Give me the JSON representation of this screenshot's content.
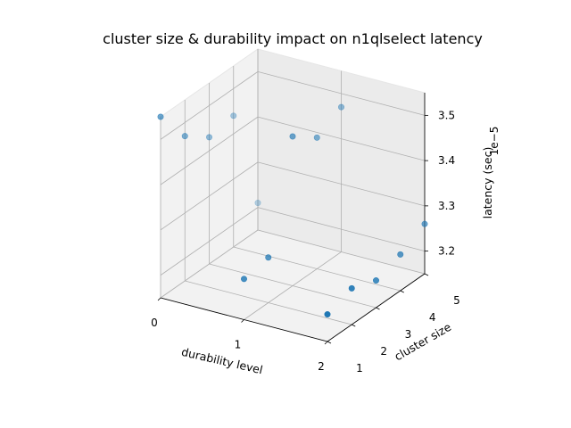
{
  "chart_data": {
    "type": "scatter",
    "title": "cluster size & durability impact on n1qlselect latency",
    "xlabel": "durability level",
    "ylabel": "cluster size",
    "zlabel": "latency (sec)",
    "z_offset_label": "1e−5",
    "x_ticks": [
      "0",
      "1",
      "2"
    ],
    "y_ticks": [
      "1",
      "2",
      "3",
      "4",
      "5"
    ],
    "z_ticks": [
      "3.2",
      "3.3",
      "3.4",
      "3.5"
    ],
    "xlim": [
      0,
      2
    ],
    "ylim": [
      1,
      5
    ],
    "zlim": [
      3.15,
      3.55
    ],
    "grid": true,
    "marker_color": "#1f77b4",
    "points": [
      {
        "x": 0,
        "y": 1,
        "z": 3.55
      },
      {
        "x": 0,
        "y": 2,
        "z": 3.47
      },
      {
        "x": 0,
        "y": 3,
        "z": 3.43
      },
      {
        "x": 0,
        "y": 4,
        "z": 3.44
      },
      {
        "x": 0,
        "y": 5,
        "z": 3.21
      },
      {
        "x": 1,
        "y": 1,
        "z": 3.24
      },
      {
        "x": 1,
        "y": 2,
        "z": 3.25
      },
      {
        "x": 1,
        "y": 3,
        "z": 3.48
      },
      {
        "x": 1,
        "y": 4,
        "z": 3.44
      },
      {
        "x": 1,
        "y": 5,
        "z": 3.47
      },
      {
        "x": 2,
        "y": 1,
        "z": 3.21
      },
      {
        "x": 2,
        "y": 2,
        "z": 3.23
      },
      {
        "x": 2,
        "y": 3,
        "z": 3.21
      },
      {
        "x": 2,
        "y": 4,
        "z": 3.23
      },
      {
        "x": 2,
        "y": 5,
        "z": 3.26
      }
    ]
  }
}
